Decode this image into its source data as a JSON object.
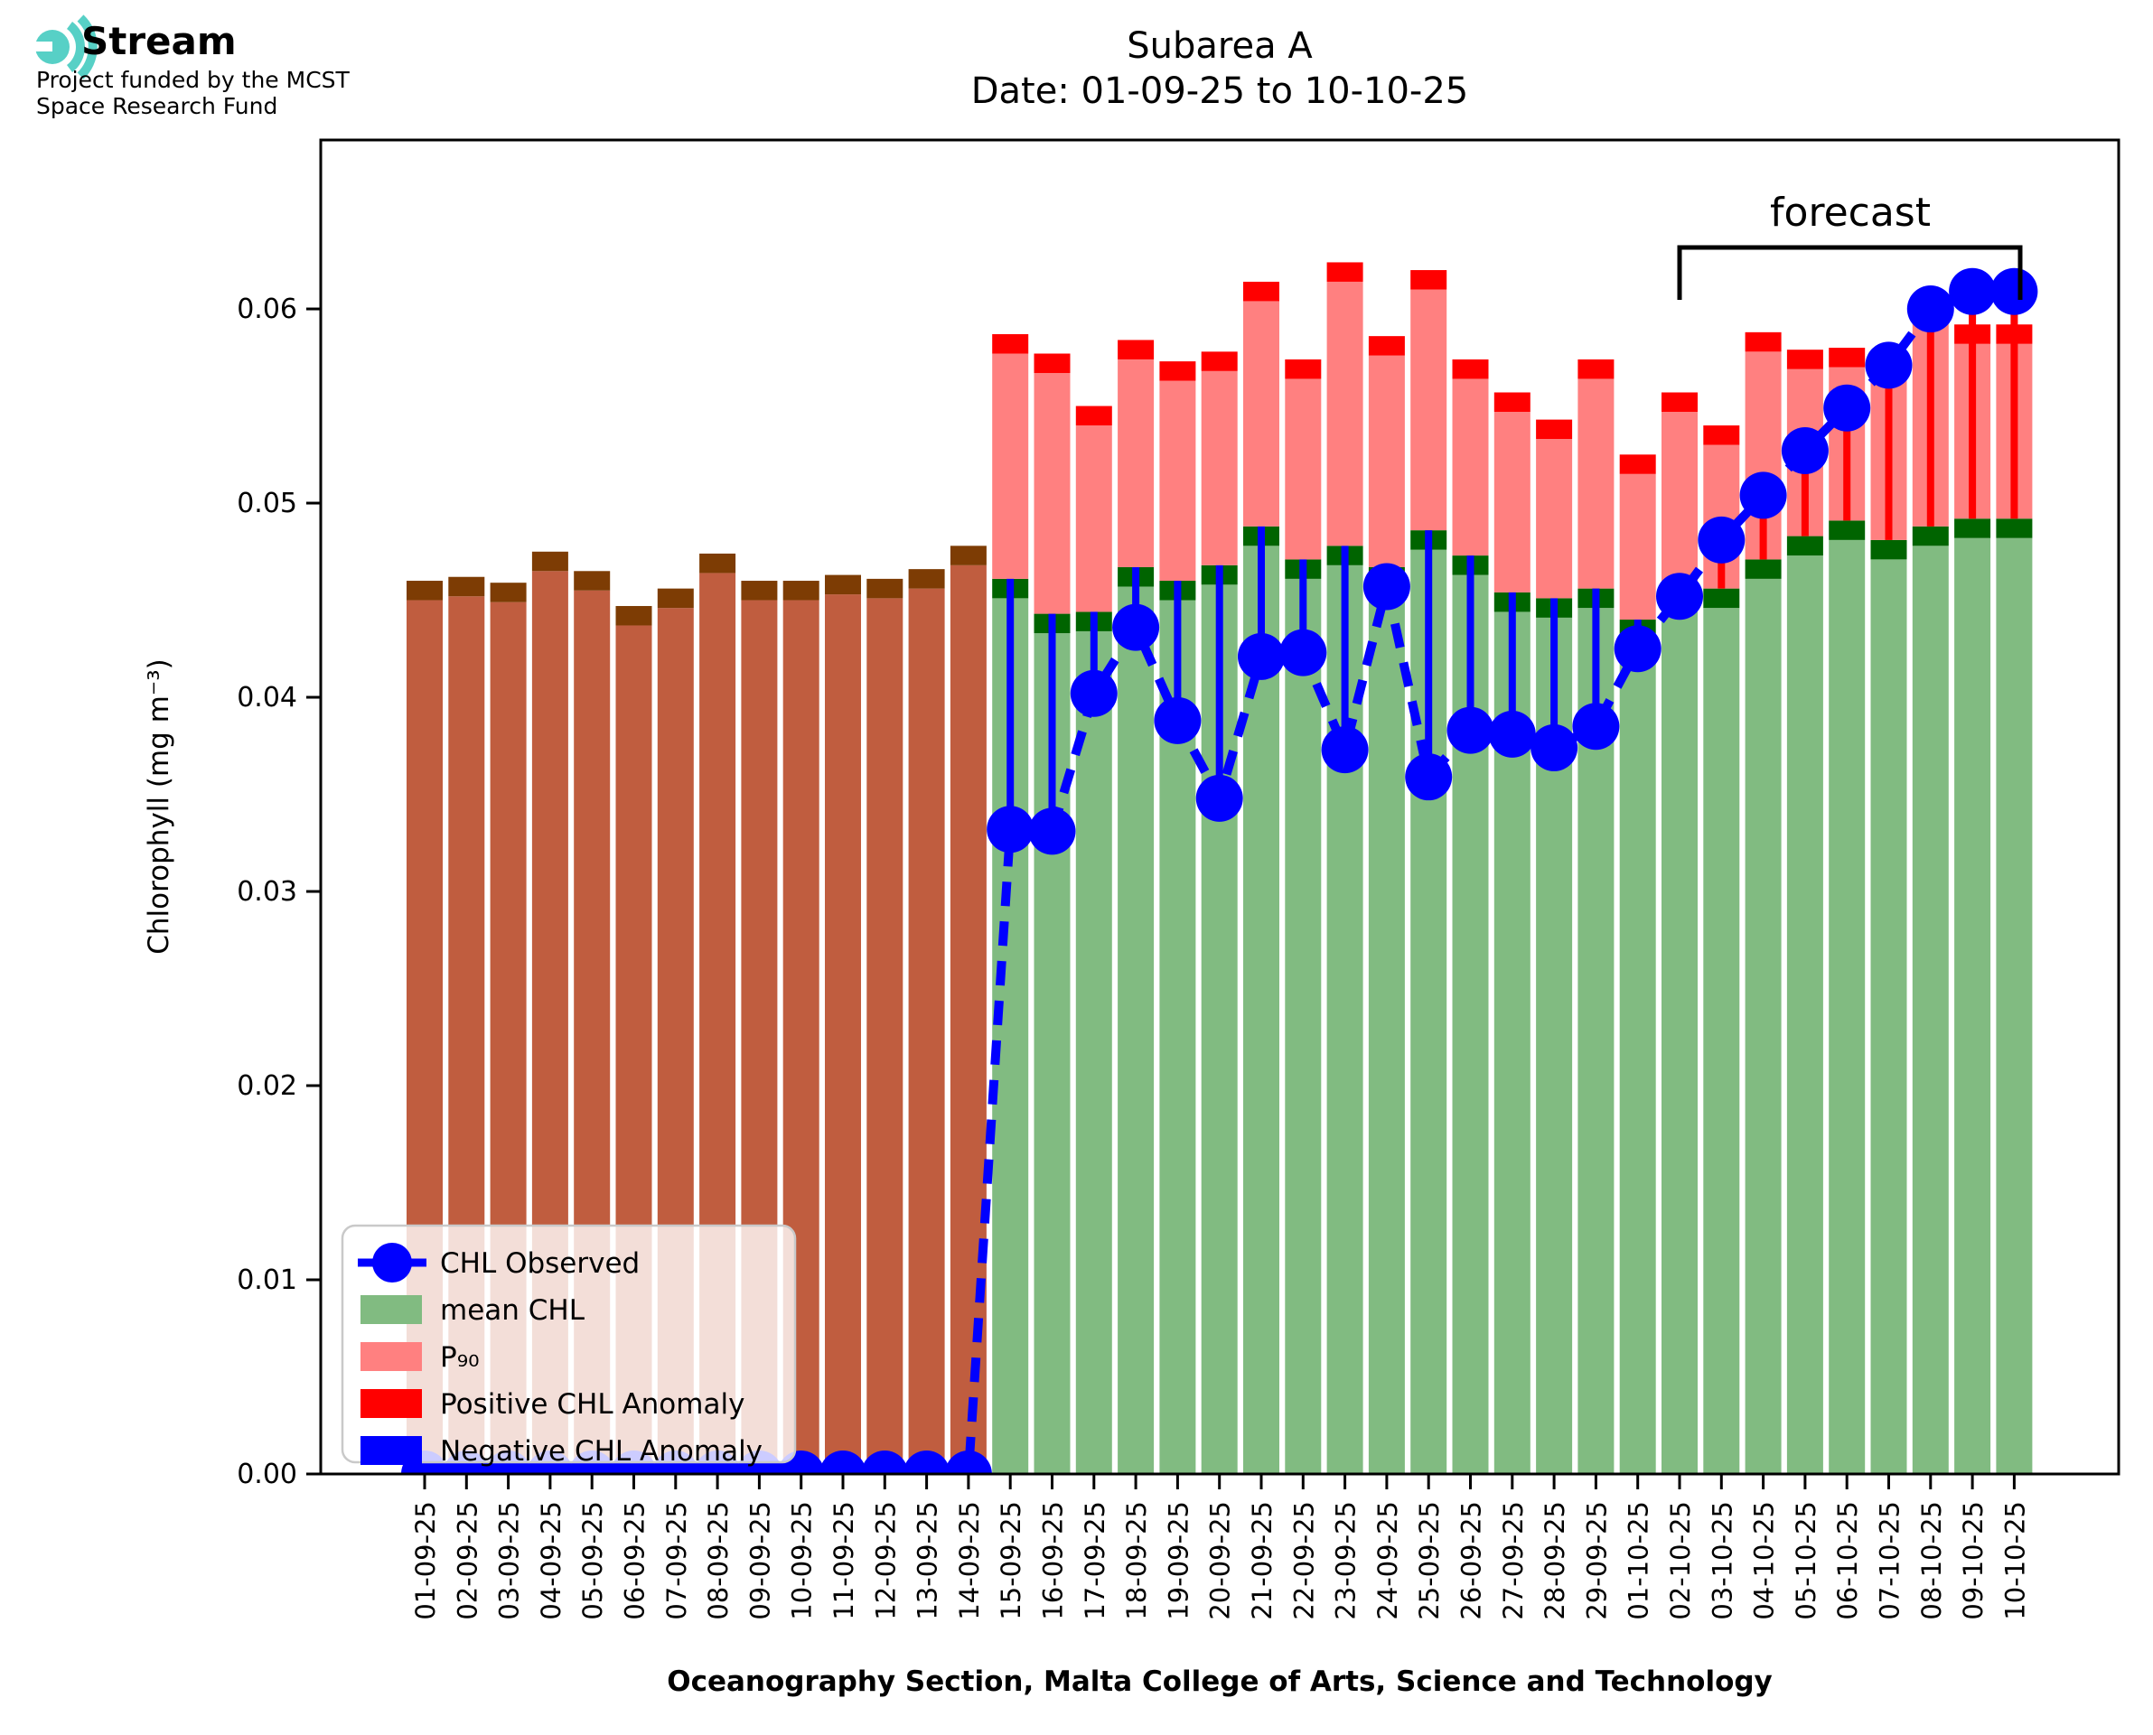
{
  "logo": {
    "brand": "Stream",
    "subtitle_line1": "Project funded by the MCST",
    "subtitle_line2": "Space Research Fund"
  },
  "title": {
    "line1": "Subarea A",
    "line2": "Date: 01-09-25 to 10-10-25"
  },
  "forecast_label": "forecast",
  "axes": {
    "y_label": "Chlorophyll (mg m⁻³)",
    "x_label": "Oceanography Section, Malta College of Arts, Science and Technology",
    "y_ticks": [
      "0.00",
      "0.01",
      "0.02",
      "0.03",
      "0.04",
      "0.05",
      "0.06"
    ]
  },
  "legend": {
    "items": [
      {
        "label": "CHL Observed",
        "swatch": "line-marker",
        "color": "#0000ff"
      },
      {
        "label": "mean CHL",
        "swatch": "patch",
        "color": "#81bb81"
      },
      {
        "label": "P₉₀",
        "swatch": "patch",
        "color": "#ff8080"
      },
      {
        "label": "Positive CHL Anomaly",
        "swatch": "patch",
        "color": "#ff0000"
      },
      {
        "label": "Negative CHL Anomaly",
        "swatch": "patch",
        "color": "#0000ff"
      }
    ]
  },
  "colors": {
    "observed_blue": "#0000ff",
    "mean_green": "#81bb81",
    "mean_green_cap": "#006400",
    "p90_pink": "#ff8080",
    "p90_red_cap": "#ff0000",
    "nodata_brown": "#c05d3f",
    "nodata_brown_cap": "#7d3c04",
    "logo_teal": "#57d0c6"
  },
  "chart_data": {
    "type": "bar",
    "title": "Subarea A — Date: 01-09-25 to 10-10-25",
    "xlabel": "Oceanography Section, Malta College of Arts, Science and Technology",
    "ylabel": "Chlorophyll (mg m⁻³)",
    "ylim": [
      0,
      0.0687
    ],
    "grid": false,
    "legend_position": "lower left",
    "forecast_span_categories": [
      "02-10-25",
      "10-10-25"
    ],
    "categories": [
      "01-09-25",
      "02-09-25",
      "03-09-25",
      "04-09-25",
      "05-09-25",
      "06-09-25",
      "07-09-25",
      "08-09-25",
      "09-09-25",
      "10-09-25",
      "11-09-25",
      "12-09-25",
      "13-09-25",
      "14-09-25",
      "15-09-25",
      "16-09-25",
      "17-09-25",
      "18-09-25",
      "19-09-25",
      "20-09-25",
      "21-09-25",
      "22-09-25",
      "23-09-25",
      "24-09-25",
      "25-09-25",
      "26-09-25",
      "27-09-25",
      "28-09-25",
      "29-09-25",
      "01-10-25",
      "02-10-25",
      "03-10-25",
      "04-10-25",
      "05-10-25",
      "06-10-25",
      "07-10-25",
      "08-10-25",
      "09-10-25",
      "10-10-25"
    ],
    "bar_style": [
      "no-data",
      "no-data",
      "no-data",
      "no-data",
      "no-data",
      "no-data",
      "no-data",
      "no-data",
      "no-data",
      "no-data",
      "no-data",
      "no-data",
      "no-data",
      "no-data",
      "normal",
      "normal",
      "normal",
      "normal",
      "normal",
      "normal",
      "normal",
      "normal",
      "normal",
      "normal",
      "normal",
      "normal",
      "normal",
      "normal",
      "normal",
      "normal",
      "normal",
      "normal",
      "normal",
      "normal",
      "normal",
      "normal",
      "normal",
      "normal",
      "normal"
    ],
    "series": [
      {
        "name": "mean CHL",
        "values": [
          0.046,
          0.0462,
          0.0459,
          0.0475,
          0.0465,
          0.0447,
          0.0456,
          0.0474,
          0.046,
          0.046,
          0.0463,
          0.0461,
          0.0466,
          0.0478,
          0.0461,
          0.0443,
          0.0444,
          0.0467,
          0.046,
          0.0468,
          0.0488,
          0.0471,
          0.0478,
          0.0467,
          0.0486,
          0.0473,
          0.0454,
          0.0451,
          0.0456,
          0.044,
          0.0457,
          0.0456,
          0.0471,
          0.0483,
          0.0491,
          0.0481,
          0.0488,
          0.0492,
          0.0492
        ]
      },
      {
        "name": "P90",
        "values": [
          null,
          null,
          null,
          null,
          null,
          null,
          null,
          null,
          null,
          null,
          null,
          null,
          null,
          null,
          0.0587,
          0.0577,
          0.055,
          0.0584,
          0.0573,
          0.0578,
          0.0614,
          0.0574,
          0.0624,
          0.0586,
          0.062,
          0.0574,
          0.0557,
          0.0543,
          0.0574,
          0.0525,
          0.0557,
          0.054,
          0.0588,
          0.0579,
          0.058,
          0.0574,
          0.0605,
          0.0592,
          0.0592
        ]
      },
      {
        "name": "CHL Observed",
        "values": [
          0,
          0,
          0,
          0,
          0,
          0,
          0,
          0,
          0,
          0,
          0,
          0,
          0,
          0,
          0.0332,
          0.0331,
          0.0402,
          0.0436,
          0.0388,
          0.0348,
          0.0421,
          0.0423,
          0.0373,
          0.0457,
          0.0359,
          0.0383,
          0.0381,
          0.0374,
          0.0385,
          0.0425,
          0.0452,
          0.0481,
          0.0504,
          0.0527,
          0.0549,
          0.0571,
          0.06,
          0.0609,
          0.0609
        ]
      },
      {
        "name": "CHL Anomaly",
        "values": [
          "none",
          "none",
          "none",
          "none",
          "none",
          "none",
          "none",
          "none",
          "none",
          "none",
          "none",
          "none",
          "none",
          "none",
          "negative",
          "negative",
          "negative",
          "negative",
          "negative",
          "negative",
          "negative",
          "negative",
          "negative",
          "negative",
          "negative",
          "negative",
          "negative",
          "negative",
          "negative",
          "negative",
          "negative",
          "positive",
          "positive",
          "positive",
          "positive",
          "positive",
          "positive",
          "positive",
          "positive"
        ]
      }
    ]
  }
}
